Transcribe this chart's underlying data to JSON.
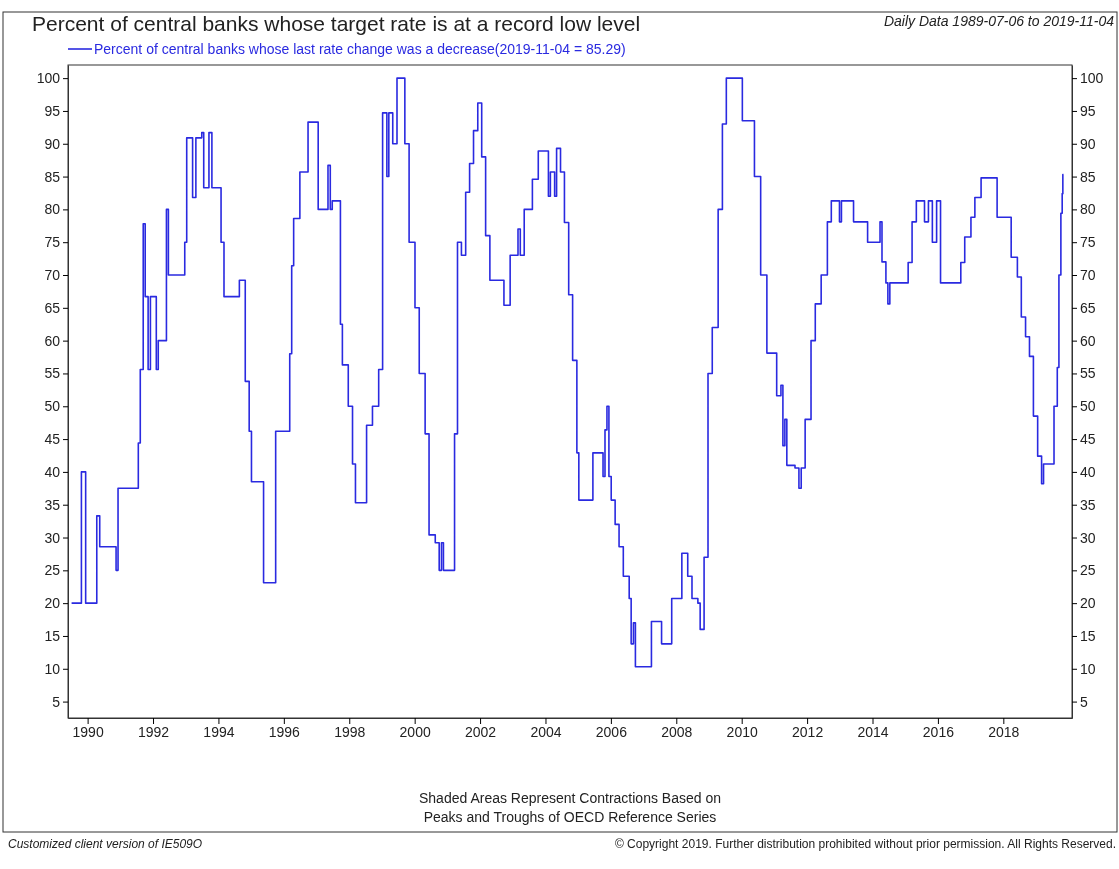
{
  "chart_data": {
    "type": "step",
    "title": "Percent of central banks whose target rate is at a record low level",
    "subtitle": "Daily Data 1989-07-06 to 2019-11-04",
    "annotations": [
      "Shaded Areas Represent Contractions Based on\nPeaks and Troughs of OECD Reference Series",
      "Customized client version of IE509O",
      "© Copyright 2019. Further distribution prohibited without prior permission. All Rights Reserved."
    ],
    "xlim": [
      1989.4,
      2020.1
    ],
    "xticks": [
      1990,
      1992,
      1994,
      1996,
      1998,
      2000,
      2002,
      2004,
      2006,
      2008,
      2010,
      2012,
      2014,
      2016,
      2018
    ],
    "ylim": [
      2.5,
      102
    ],
    "yticks": [
      5,
      10,
      15,
      20,
      25,
      30,
      35,
      40,
      45,
      50,
      55,
      60,
      65,
      70,
      75,
      80,
      85,
      90,
      95,
      100
    ],
    "y2lim": [
      2.5,
      102
    ],
    "y2ticks": [
      5,
      10,
      15,
      20,
      25,
      30,
      35,
      40,
      45,
      50,
      55,
      60,
      65,
      70,
      75,
      80,
      85,
      90,
      95,
      100
    ],
    "legend": "top left",
    "grid": false,
    "marker": "none",
    "line_style": "solid",
    "series": [
      {
        "name": "Percent of central banks whose last rate change was a decrease(2019-11-04 = 85.29)",
        "color": "#2a2ae0",
        "x": [
          1989.51,
          1989.81,
          1989.94,
          1990.28,
          1990.37,
          1990.87,
          1990.93,
          1991.48,
          1991.55,
          1991.61,
          1991.7,
          1991.76,
          1991.85,
          1991.92,
          1992.1,
          1992.16,
          1992.41,
          1992.47,
          1992.9,
          1992.97,
          1993.03,
          1993.21,
          1993.31,
          1993.49,
          1993.55,
          1993.71,
          1993.8,
          1994.08,
          1994.17,
          1994.57,
          1994.64,
          1994.79,
          1994.82,
          1994.94,
          1995.01,
          1995.31,
          1995.38,
          1995.69,
          1995.75,
          1996.12,
          1996.18,
          1996.24,
          1996.3,
          1996.49,
          1996.74,
          1996.98,
          1997.05,
          1997.35,
          1997.42,
          1997.48,
          1997.66,
          1997.73,
          1997.79,
          1997.97,
          1998.1,
          1998.19,
          1998.4,
          1998.53,
          1998.71,
          1998.9,
          1999.02,
          1999.15,
          1999.21,
          1999.33,
          1999.46,
          1999.64,
          1999.7,
          1999.83,
          2000.01,
          2000.14,
          2000.32,
          2000.44,
          2000.63,
          2000.75,
          2000.82,
          2000.88,
          2001.12,
          2001.22,
          2001.31,
          2001.43,
          2001.56,
          2001.68,
          2001.8,
          2001.93,
          2002.05,
          2002.17,
          2002.3,
          2002.67,
          2002.73,
          2002.85,
          2002.92,
          2003.1,
          2003.16,
          2003.23,
          2003.35,
          2003.6,
          2003.78,
          2004.03,
          2004.09,
          2004.15,
          2004.28,
          2004.34,
          2004.46,
          2004.58,
          2004.71,
          2004.83,
          2004.96,
          2005.02,
          2005.33,
          2005.45,
          2005.7,
          2005.76,
          2005.82,
          2005.88,
          2005.94,
          2006.01,
          2006.13,
          2006.25,
          2006.38,
          2006.56,
          2006.62,
          2006.69,
          2006.75,
          2007.18,
          2007.24,
          2007.49,
          2007.55,
          2007.8,
          2007.86,
          2008.11,
          2008.17,
          2008.35,
          2008.48,
          2008.66,
          2008.73,
          2008.85,
          2008.97,
          2009.1,
          2009.28,
          2009.41,
          2009.53,
          2009.93,
          2010.02,
          2010.27,
          2010.39,
          2010.58,
          2010.77,
          2011.01,
          2011.07,
          2011.2,
          2011.26,
          2011.32,
          2011.38,
          2011.63,
          2011.75,
          2011.82,
          2011.94,
          2012.12,
          2012.25,
          2012.43,
          2012.62,
          2012.74,
          2012.99,
          2013.05,
          2013.42,
          2013.79,
          2013.85,
          2014.1,
          2014.23,
          2014.29,
          2014.41,
          2014.47,
          2014.53,
          2014.97,
          2015.09,
          2015.21,
          2015.34,
          2015.59,
          2015.71,
          2015.83,
          2015.96,
          2016.08,
          2016.57,
          2016.7,
          2016.82,
          2017.01,
          2017.13,
          2017.32,
          2017.69,
          2017.81,
          2018.0,
          2018.24,
          2018.43,
          2018.55,
          2018.68,
          2018.8,
          2018.92,
          2019.05,
          2019.17,
          2019.23,
          2019.48,
          2019.55,
          2019.65,
          2019.7,
          2019.76,
          2019.8,
          2019.82,
          2019.84
        ],
        "values": [
          20,
          40,
          20,
          33.3,
          28.6,
          25,
          37.5,
          37.5,
          44.4,
          55.6,
          77.8,
          66.7,
          55.6,
          66.7,
          55.6,
          60,
          80,
          70,
          70,
          75,
          90.9,
          81.8,
          90.9,
          91.7,
          83.3,
          91.7,
          83.3,
          75,
          66.7,
          66.7,
          69.2,
          69.2,
          53.8,
          46.2,
          38.5,
          38.5,
          23.1,
          23.1,
          46.2,
          46.2,
          58,
          71.4,
          78.6,
          85.7,
          93.3,
          93.3,
          80,
          86.7,
          80,
          81.3,
          81.3,
          62.5,
          56.3,
          50,
          41.2,
          35.3,
          35.3,
          47.1,
          50,
          55.6,
          94.7,
          85,
          94.7,
          90,
          100,
          100,
          90,
          75,
          65,
          55,
          45.8,
          30.4,
          29.2,
          25,
          29.2,
          25,
          25,
          45.8,
          75,
          73,
          82.6,
          87,
          92,
          96.2,
          88,
          76,
          69.2,
          69.2,
          65.4,
          65.4,
          73,
          73,
          77,
          73,
          80,
          84.6,
          88.9,
          88.9,
          82,
          85.7,
          82,
          89.3,
          85.7,
          78,
          67,
          57,
          42.9,
          35.7,
          35.7,
          42.9,
          42.9,
          39.3,
          46.4,
          50,
          39.3,
          35.7,
          32,
          28.6,
          24.1,
          20.7,
          13.8,
          17,
          10.3,
          10.3,
          17.2,
          17.2,
          13.8,
          13.8,
          20.7,
          20.7,
          27.6,
          24.1,
          20.7,
          20,
          16,
          27,
          55,
          62,
          80,
          93,
          100,
          100,
          93.5,
          93.5,
          85,
          70,
          58.1,
          58.1,
          51.6,
          53.2,
          44,
          48,
          41,
          40.6,
          37.5,
          40.6,
          48,
          60,
          65.6,
          70,
          78.1,
          81.3,
          78.1,
          81.3,
          78.1,
          78.1,
          75,
          75,
          78.1,
          72,
          68.8,
          65.6,
          68.8,
          68.8,
          71.9,
          78.1,
          81.3,
          78.1,
          81.3,
          75,
          81.3,
          68.8,
          68.8,
          71.9,
          75.8,
          78.8,
          81.8,
          84.8,
          84.8,
          78.8,
          78.8,
          72.7,
          69.7,
          63.6,
          60.6,
          57.6,
          48.5,
          42.4,
          38.2,
          41.2,
          41.2,
          50,
          55.9,
          70,
          79.4,
          82.4,
          85.3,
          85.3
        ]
      }
    ]
  }
}
